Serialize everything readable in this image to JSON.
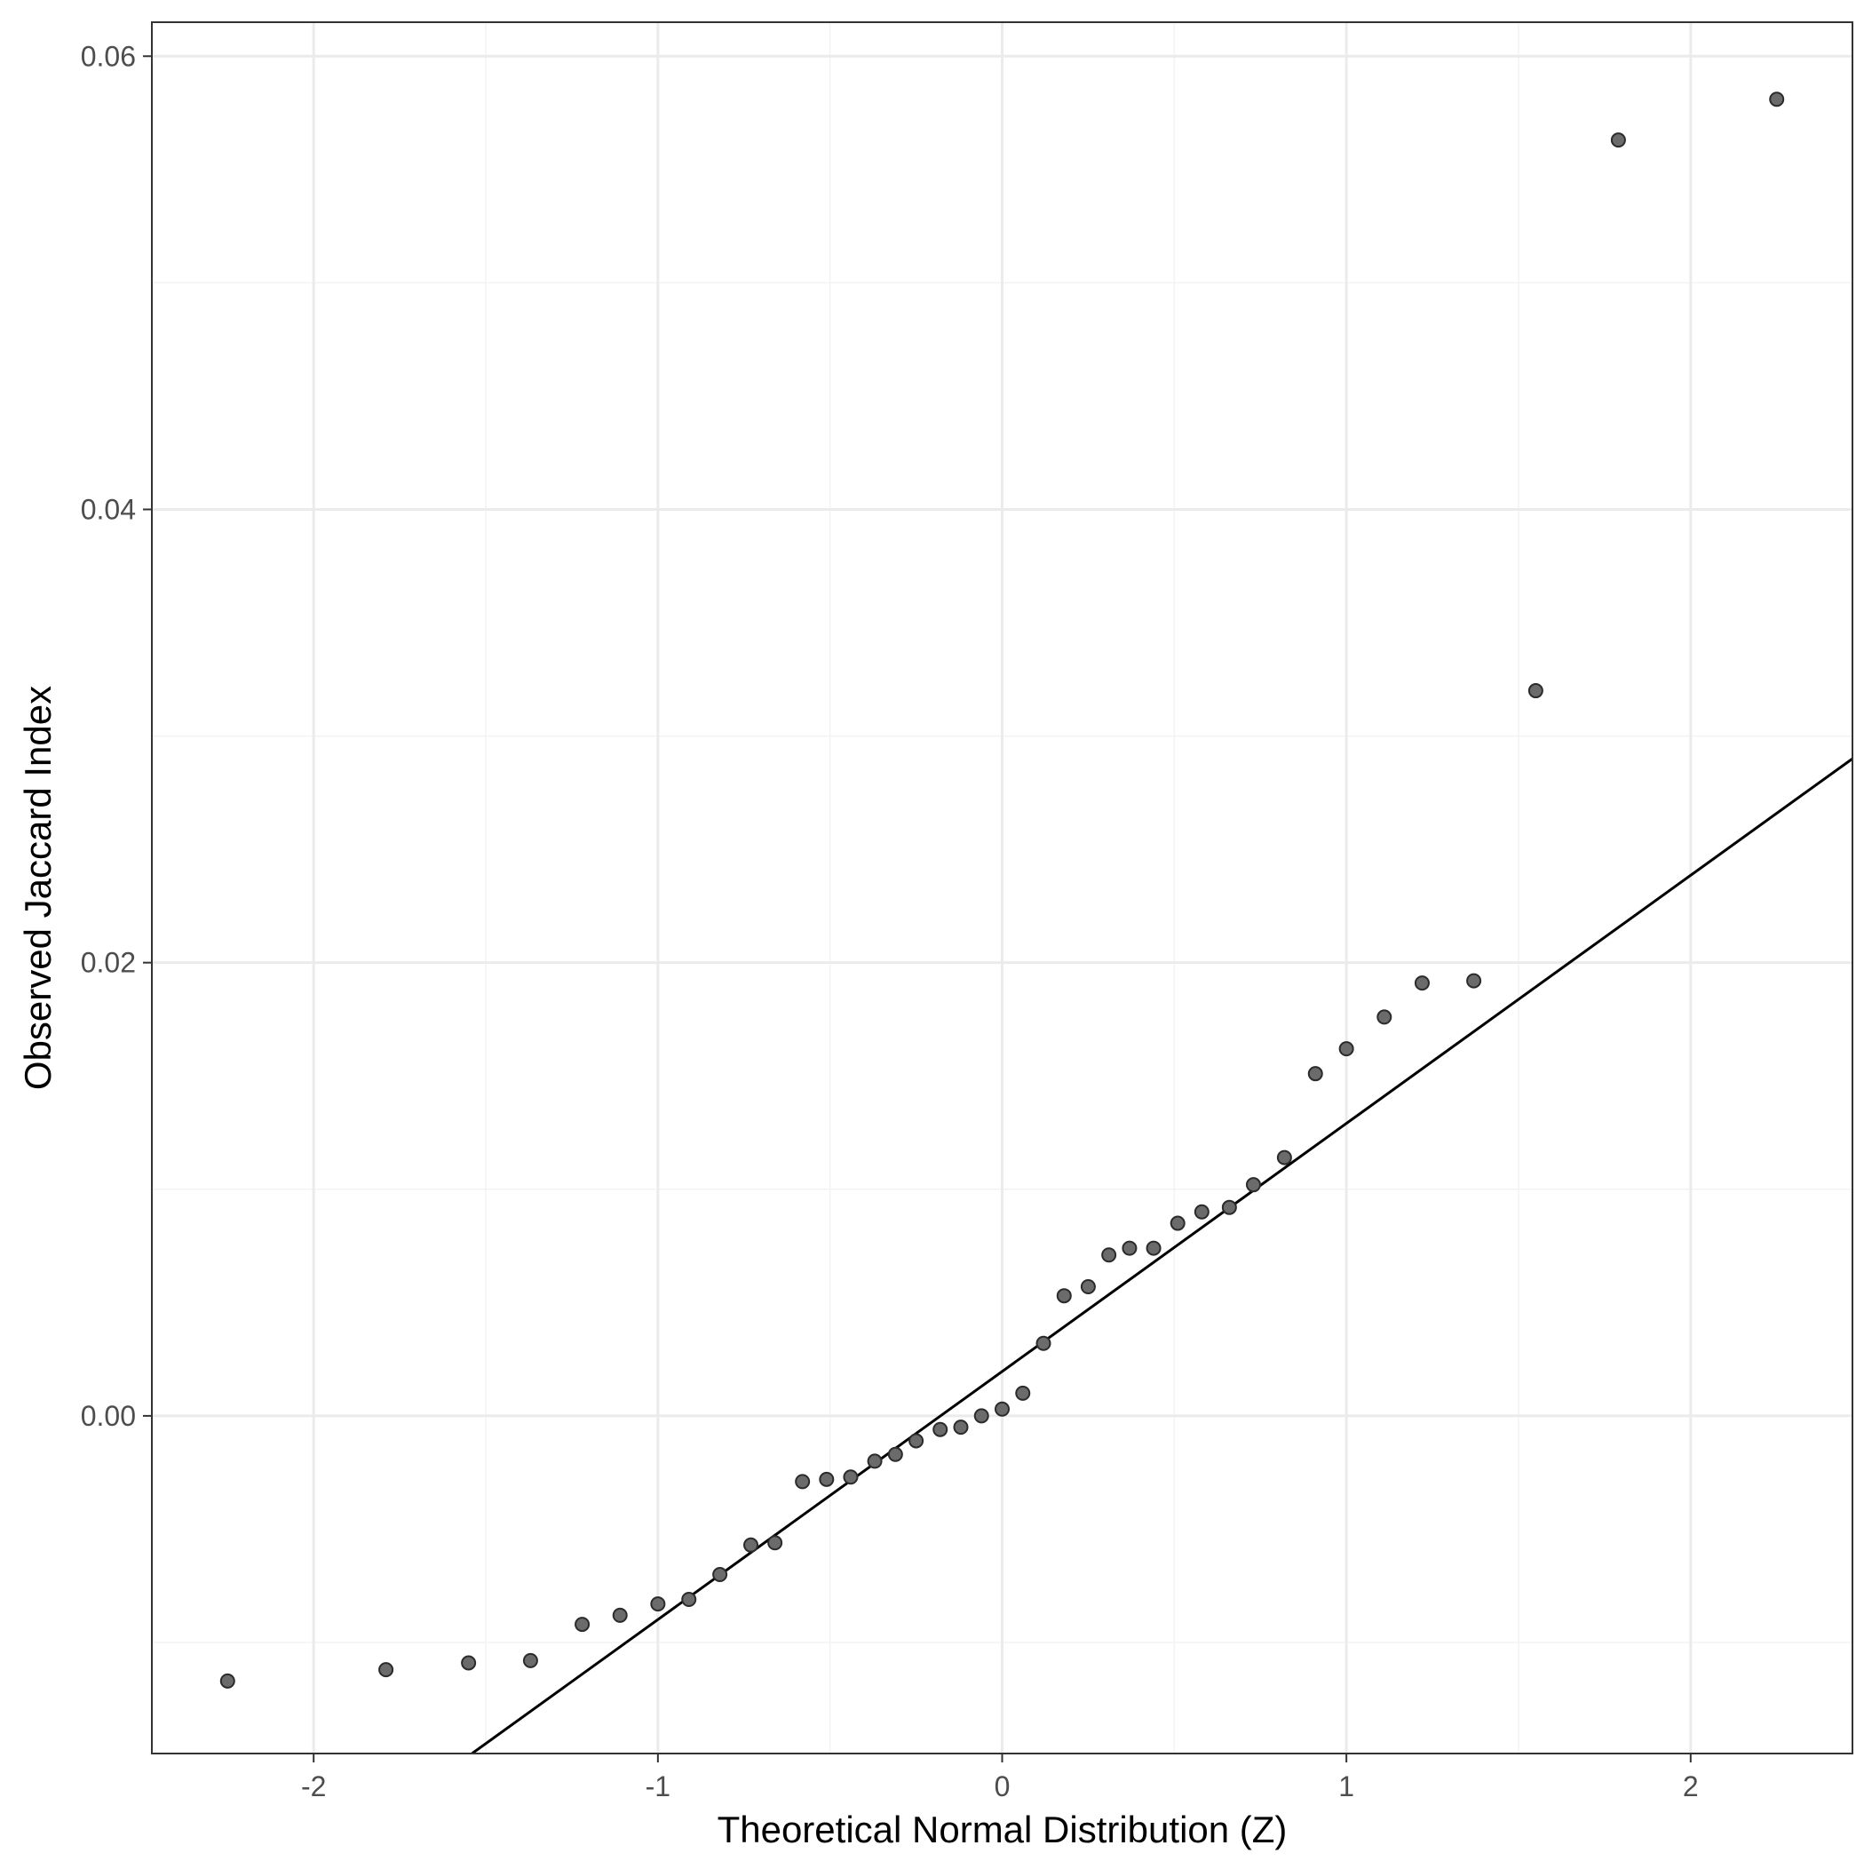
{
  "chart_data": {
    "type": "scatter",
    "title": "",
    "xlabel": "Theoretical Normal Distribution (Z)",
    "ylabel": "Observed Jaccard Index",
    "xlim": [
      -2.47,
      2.47
    ],
    "ylim": [
      -0.0149,
      0.0615
    ],
    "x_ticks": [
      -2,
      -1,
      0,
      1,
      2
    ],
    "x_tick_labels": [
      "-2",
      "-1",
      "0",
      "1",
      "2"
    ],
    "y_ticks": [
      0.0,
      0.02,
      0.04,
      0.06
    ],
    "y_tick_labels": [
      "0.00",
      "0.02",
      "0.04",
      "0.06"
    ],
    "grid": true,
    "colors": {
      "points": "#6b6b6b",
      "point_border": "#2b2b2b",
      "line": "#000000",
      "grid_major": "#ebebeb",
      "grid_minor": "#f3f3f3",
      "panel_border": "#333333"
    },
    "series": [
      {
        "type": "scatter",
        "x": [
          -2.25,
          -1.79,
          -1.55,
          -1.37,
          -1.22,
          -1.11,
          -1.0,
          -0.91,
          -0.82,
          -0.73,
          -0.66,
          -0.58,
          -0.51,
          -0.44,
          -0.37,
          -0.31,
          -0.25,
          -0.18,
          -0.12,
          -0.06,
          0.0,
          0.06,
          0.12,
          0.18,
          0.25,
          0.31,
          0.37,
          0.44,
          0.51,
          0.58,
          0.66,
          0.73,
          0.82,
          0.91,
          1.0,
          1.11,
          1.22,
          1.37,
          1.55,
          1.79,
          2.25
        ],
        "values": [
          -0.0117,
          -0.0112,
          -0.0109,
          -0.0108,
          -0.0092,
          -0.0088,
          -0.0083,
          -0.0081,
          -0.007,
          -0.0057,
          -0.0056,
          -0.0029,
          -0.0028,
          -0.0027,
          -0.002,
          -0.0017,
          -0.0011,
          -0.0006,
          -0.0005,
          0.0,
          0.0003,
          0.001,
          0.0032,
          0.0053,
          0.0057,
          0.0071,
          0.0074,
          0.0074,
          0.0085,
          0.009,
          0.0092,
          0.0102,
          0.0114,
          0.0151,
          0.0162,
          0.0176,
          0.0191,
          0.0192,
          0.032,
          0.0563,
          0.0581
        ]
      },
      {
        "type": "line",
        "x": [
          -1.54,
          2.47
        ],
        "values": [
          -0.0149,
          0.029
        ]
      }
    ]
  }
}
